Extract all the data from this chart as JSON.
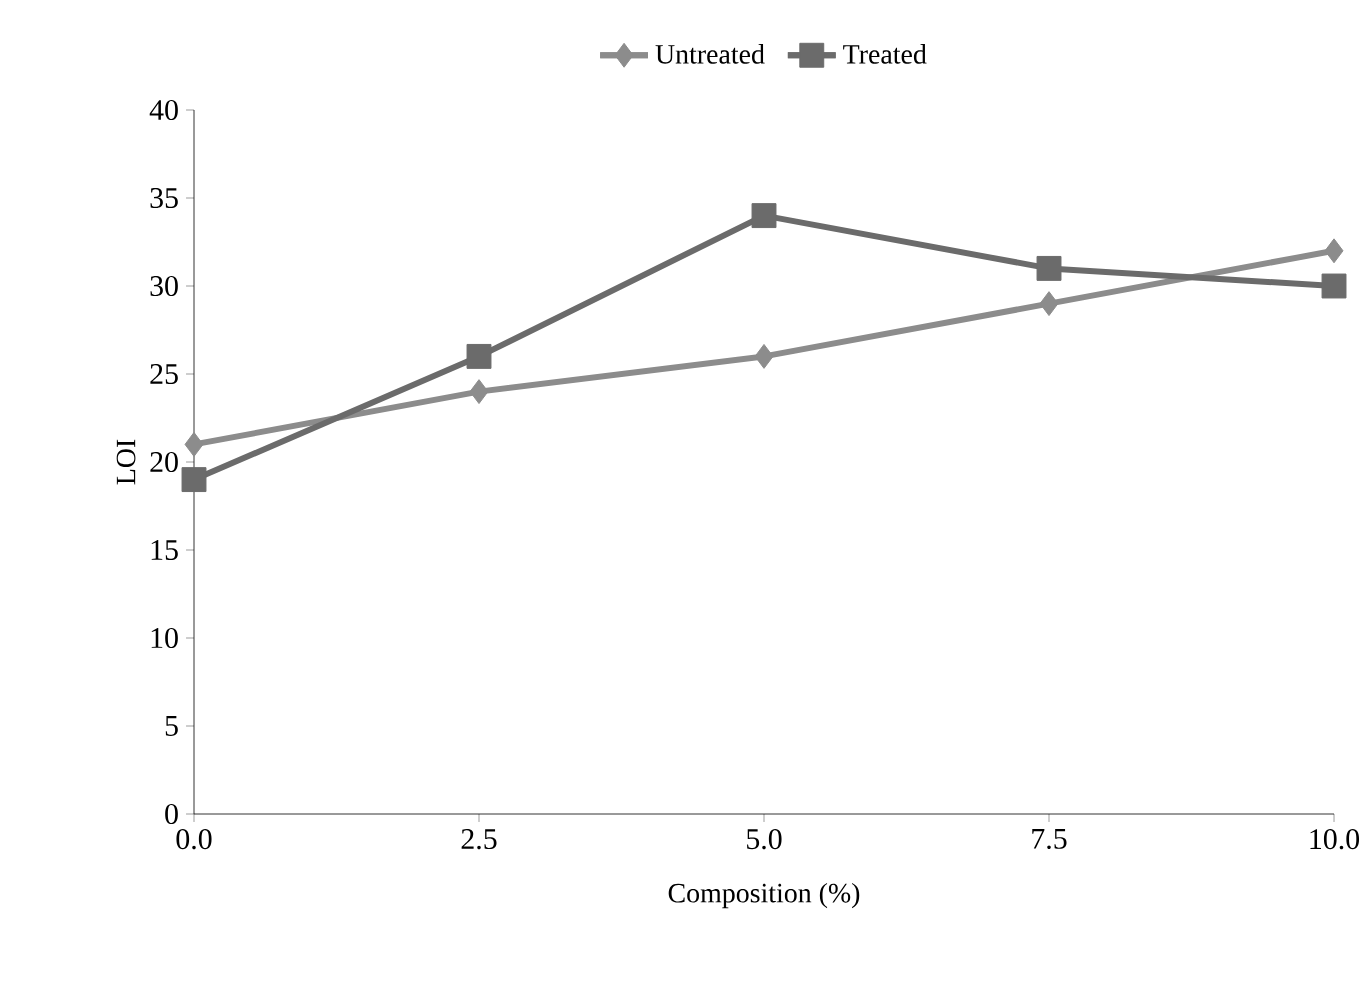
{
  "chart_data": {
    "type": "line",
    "xlabel": "Composition (%)",
    "ylabel": "LOI",
    "x": [
      0,
      2.5,
      5,
      7.5,
      10
    ],
    "series": [
      {
        "name": "Untreated",
        "color": "#8c8c8c",
        "marker": "diamond",
        "values": [
          21,
          24,
          26,
          29,
          32
        ]
      },
      {
        "name": "Treated",
        "color": "#6b6b6b",
        "marker": "square",
        "values": [
          19,
          26,
          34,
          31,
          30
        ]
      }
    ],
    "xlim": [
      0,
      10
    ],
    "xticks": [
      {
        "value": 0,
        "label": "0.0"
      },
      {
        "value": 2.5,
        "label": "2.5"
      },
      {
        "value": 5,
        "label": "5.0"
      },
      {
        "value": 7.5,
        "label": "7.5"
      },
      {
        "value": 10,
        "label": "10.0"
      }
    ],
    "ylim": [
      0,
      40
    ],
    "yticks": [
      0,
      5,
      10,
      15,
      20,
      25,
      30,
      35,
      40
    ],
    "legend": "top",
    "grid": false,
    "line_style": "solid"
  }
}
